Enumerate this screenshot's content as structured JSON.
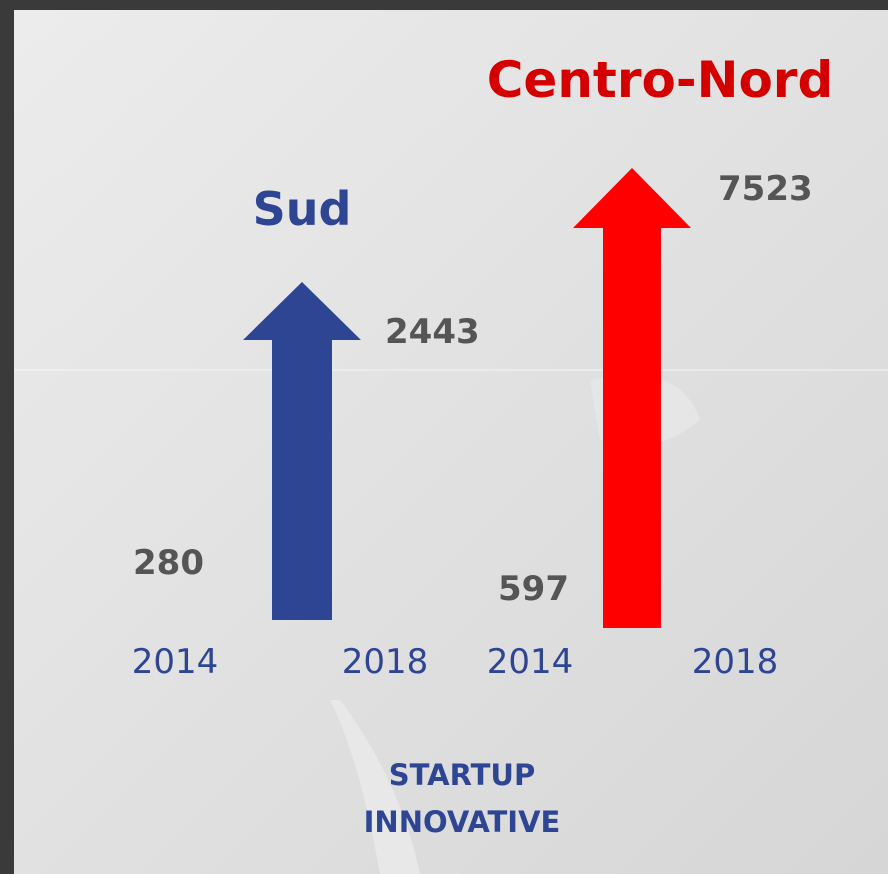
{
  "groups": [
    {
      "title": "Sud",
      "start": {
        "year": "2014",
        "value": 280
      },
      "end": {
        "year": "2018",
        "value": 2443
      }
    },
    {
      "title": "Centro-Nord",
      "start": {
        "year": "2014",
        "value": 597
      },
      "end": {
        "year": "2018",
        "value": 7523
      }
    }
  ],
  "caption": [
    "STARTUP",
    "INNOVATIVE"
  ]
}
